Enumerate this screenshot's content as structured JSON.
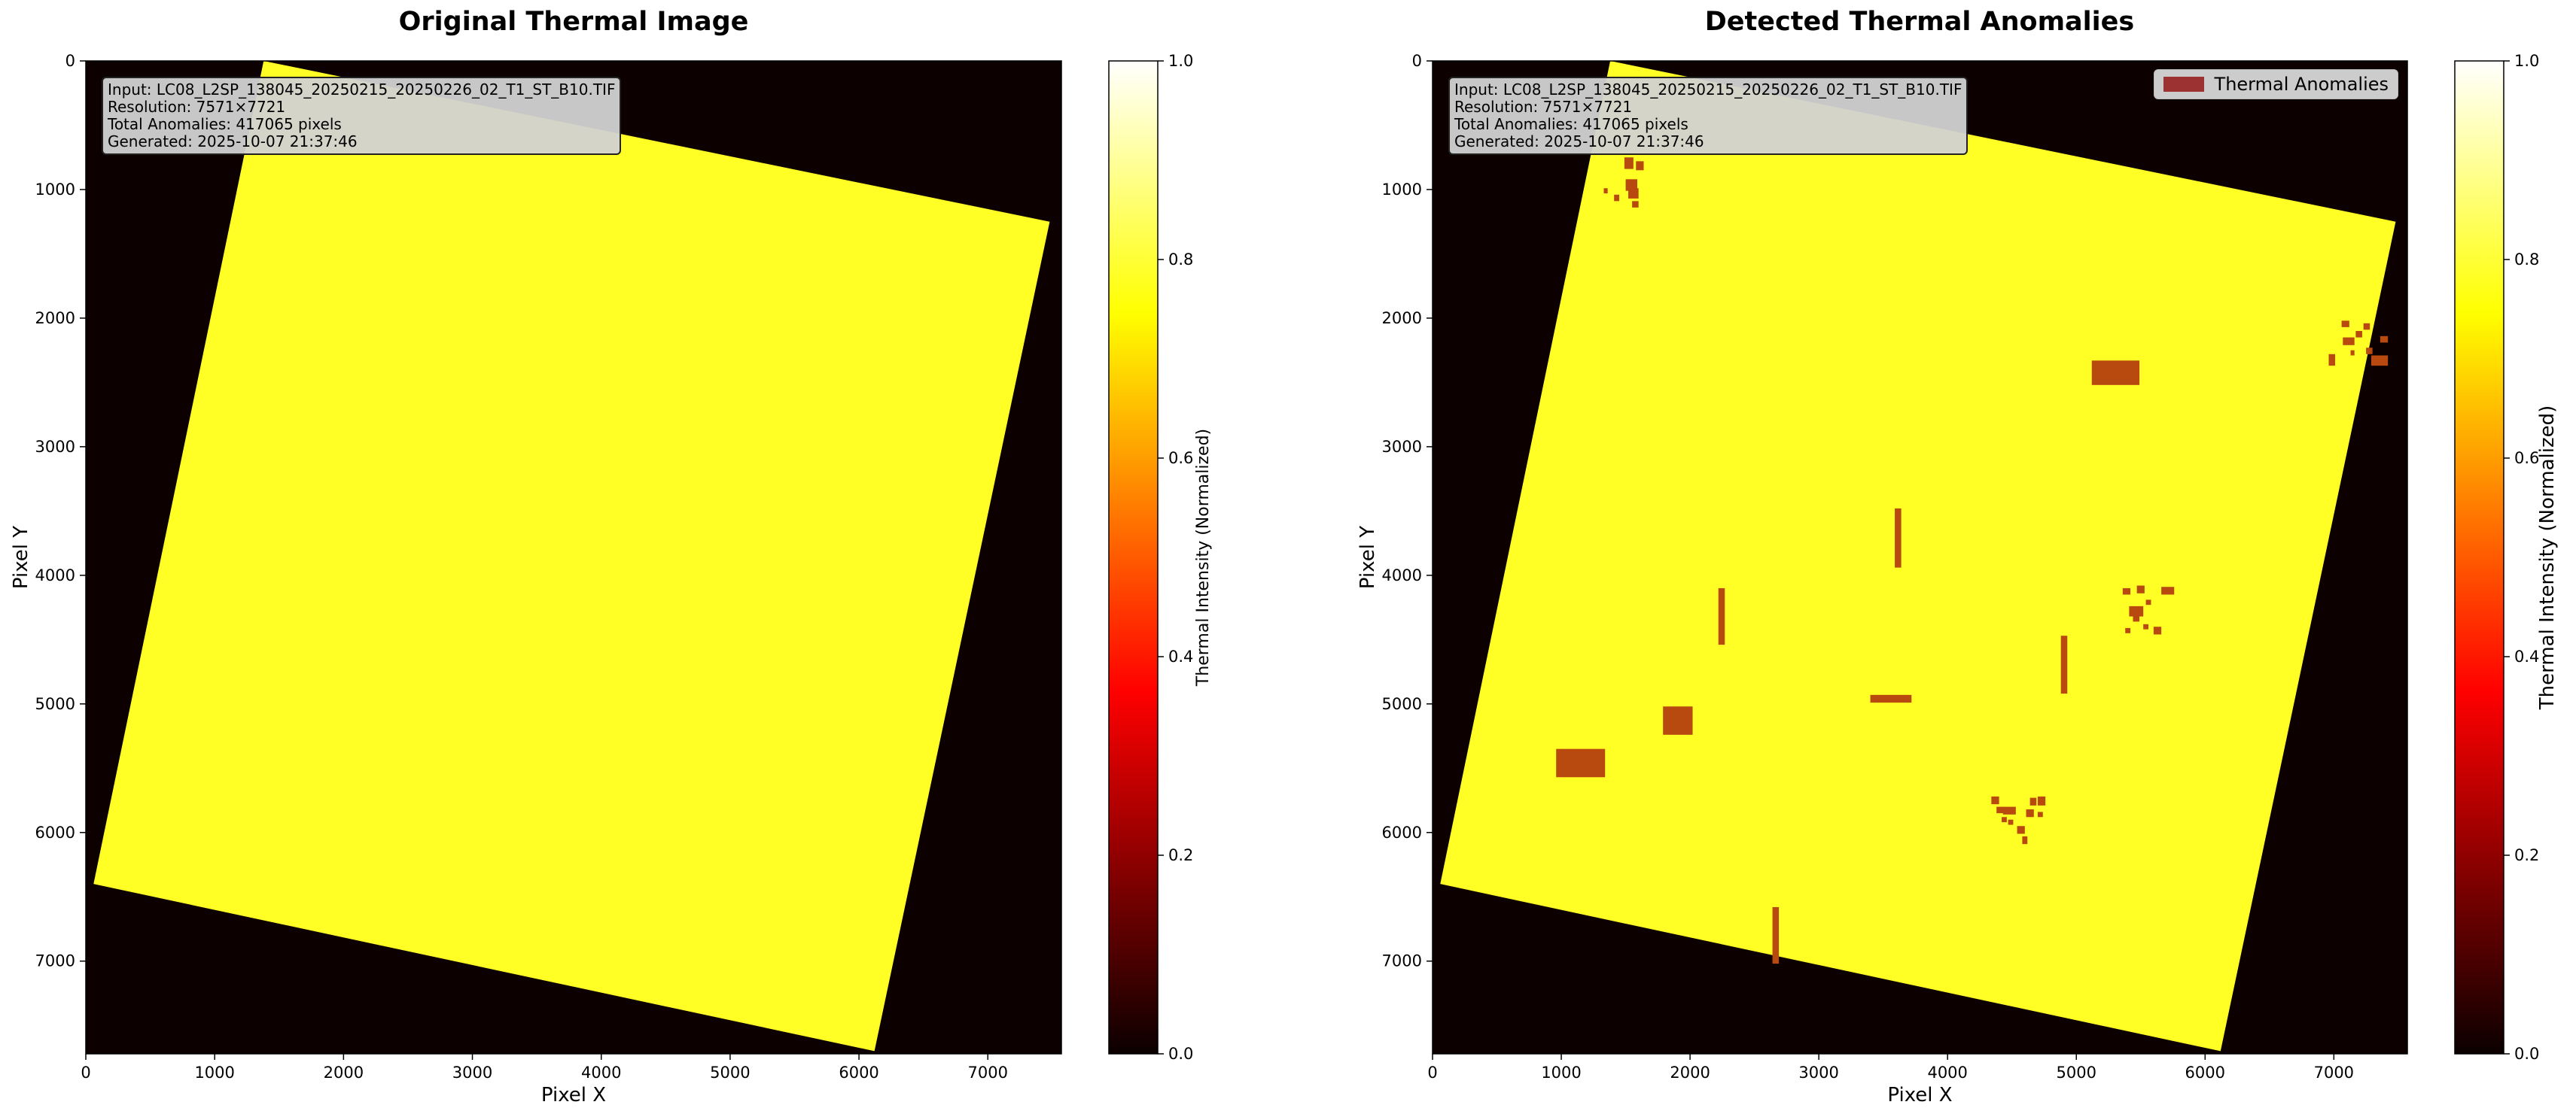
{
  "colors": {
    "background": "#0d0000",
    "scene": "#ffff26",
    "anomaly": "#b84a0f",
    "legend_swatch": "#9c3232"
  },
  "chart_data": [
    {
      "type": "heatmap",
      "title": "Original Thermal Image",
      "xlabel": "Pixel X",
      "ylabel": "Pixel Y",
      "xlim": [
        0,
        7571
      ],
      "ylim": [
        7721,
        0
      ],
      "xticks": [
        0,
        1000,
        2000,
        3000,
        4000,
        5000,
        6000,
        7000
      ],
      "yticks": [
        0,
        1000,
        2000,
        3000,
        4000,
        5000,
        6000,
        7000
      ],
      "colormap": "hot",
      "colorbar": {
        "label": "Thermal Intensity (Normalized)",
        "range": [
          0,
          1
        ],
        "ticks": [
          "0.0",
          "0.2",
          "0.4",
          "0.6",
          "0.8",
          "1.0"
        ]
      },
      "scene_corners": [
        [
          1380,
          0
        ],
        [
          7480,
          1250
        ],
        [
          6120,
          7700
        ],
        [
          60,
          6400
        ]
      ],
      "info": [
        "Input: LC08_L2SP_138045_20250215_20250226_02_T1_ST_B10.TIF",
        "Resolution: 7571×7721",
        "Total Anomalies: 417065 pixels",
        "Generated: 2025-10-07 21:37:46"
      ]
    },
    {
      "type": "heatmap",
      "title": "Detected Thermal Anomalies",
      "xlabel": "Pixel X",
      "ylabel": "Pixel Y",
      "xlim": [
        0,
        7571
      ],
      "ylim": [
        7721,
        0
      ],
      "xticks": [
        0,
        1000,
        2000,
        3000,
        4000,
        5000,
        6000,
        7000
      ],
      "yticks": [
        0,
        1000,
        2000,
        3000,
        4000,
        5000,
        6000,
        7000
      ],
      "colormap": "hot",
      "colorbar": {
        "label": "Thermal Intensity (Normalized)",
        "range": [
          0,
          1
        ],
        "ticks": [
          "0.0",
          "0.2",
          "0.4",
          "0.6",
          "0.8",
          "1.0"
        ]
      },
      "legend": {
        "label": "Thermal Anomalies",
        "placement": "top-right"
      },
      "scene_corners": [
        [
          1380,
          0
        ],
        [
          7480,
          1250
        ],
        [
          6120,
          7700
        ],
        [
          60,
          6400
        ]
      ],
      "info": [
        "Input: LC08_L2SP_138045_20250215_20250226_02_T1_ST_B10.TIF",
        "Resolution: 7571×7721",
        "Total Anomalies: 417065 pixels",
        "Generated: 2025-10-07 21:37:46"
      ],
      "anomalies": [
        {
          "x0": 960,
          "x1": 1340,
          "y0": 5350,
          "y1": 5570
        },
        {
          "x0": 1790,
          "x1": 2020,
          "y0": 5020,
          "y1": 5240
        },
        {
          "x0": 2220,
          "x1": 2270,
          "y0": 4100,
          "y1": 4540
        },
        {
          "x0": 2640,
          "x1": 2690,
          "y0": 6580,
          "y1": 7020
        },
        {
          "x0": 3400,
          "x1": 3720,
          "y0": 4930,
          "y1": 4990
        },
        {
          "x0": 3590,
          "x1": 3640,
          "y0": 3480,
          "y1": 3940
        },
        {
          "x0": 4880,
          "x1": 4930,
          "y0": 4470,
          "y1": 4920
        },
        {
          "x0": 5120,
          "x1": 5490,
          "y0": 2330,
          "y1": 2520
        },
        {
          "x0": 1490,
          "x1": 1560,
          "y0": 750,
          "y1": 840
        },
        {
          "x0": 1580,
          "x1": 1640,
          "y0": 780,
          "y1": 850
        },
        {
          "x0": 1500,
          "x1": 1590,
          "y0": 920,
          "y1": 1010
        },
        {
          "x0": 1410,
          "x1": 1450,
          "y0": 1040,
          "y1": 1090
        },
        {
          "x0": 1520,
          "x1": 1600,
          "y0": 990,
          "y1": 1070
        },
        {
          "x0": 1550,
          "x1": 1600,
          "y0": 1090,
          "y1": 1140
        },
        {
          "x0": 1330,
          "x1": 1360,
          "y0": 990,
          "y1": 1030
        },
        {
          "x0": 7060,
          "x1": 7120,
          "y0": 2020,
          "y1": 2070
        },
        {
          "x0": 7070,
          "x1": 7160,
          "y0": 2150,
          "y1": 2210
        },
        {
          "x0": 7170,
          "x1": 7220,
          "y0": 2100,
          "y1": 2150
        },
        {
          "x0": 7230,
          "x1": 7280,
          "y0": 2040,
          "y1": 2090
        },
        {
          "x0": 7250,
          "x1": 7300,
          "y0": 2230,
          "y1": 2280
        },
        {
          "x0": 7290,
          "x1": 7420,
          "y0": 2290,
          "y1": 2370
        },
        {
          "x0": 7360,
          "x1": 7420,
          "y0": 2140,
          "y1": 2190
        },
        {
          "x0": 7130,
          "x1": 7160,
          "y0": 2250,
          "y1": 2290
        },
        {
          "x0": 6960,
          "x1": 7010,
          "y0": 2280,
          "y1": 2370
        },
        {
          "x0": 5360,
          "x1": 5420,
          "y0": 4100,
          "y1": 4150
        },
        {
          "x0": 5470,
          "x1": 5530,
          "y0": 4080,
          "y1": 4140
        },
        {
          "x0": 5410,
          "x1": 5520,
          "y0": 4240,
          "y1": 4320
        },
        {
          "x0": 5540,
          "x1": 5580,
          "y0": 4190,
          "y1": 4230
        },
        {
          "x0": 5660,
          "x1": 5760,
          "y0": 4090,
          "y1": 4150
        },
        {
          "x0": 5600,
          "x1": 5660,
          "y0": 4400,
          "y1": 4460
        },
        {
          "x0": 5380,
          "x1": 5420,
          "y0": 4410,
          "y1": 4450
        },
        {
          "x0": 5520,
          "x1": 5560,
          "y0": 4380,
          "y1": 4420
        },
        {
          "x0": 5440,
          "x1": 5490,
          "y0": 4310,
          "y1": 4360
        },
        {
          "x0": 4340,
          "x1": 4400,
          "y0": 5720,
          "y1": 5780
        },
        {
          "x0": 4380,
          "x1": 4440,
          "y0": 5800,
          "y1": 5850
        },
        {
          "x0": 4430,
          "x1": 4530,
          "y0": 5800,
          "y1": 5860
        },
        {
          "x0": 4540,
          "x1": 4600,
          "y0": 5950,
          "y1": 6010
        },
        {
          "x0": 4580,
          "x1": 4620,
          "y0": 6030,
          "y1": 6090
        },
        {
          "x0": 4610,
          "x1": 4670,
          "y0": 5820,
          "y1": 5880
        },
        {
          "x0": 4640,
          "x1": 4690,
          "y0": 5730,
          "y1": 5790
        },
        {
          "x0": 4700,
          "x1": 4760,
          "y0": 5720,
          "y1": 5790
        },
        {
          "x0": 4700,
          "x1": 4740,
          "y0": 5840,
          "y1": 5880
        },
        {
          "x0": 4420,
          "x1": 4460,
          "y0": 5880,
          "y1": 5920
        },
        {
          "x0": 4470,
          "x1": 4510,
          "y0": 5900,
          "y1": 5940
        }
      ]
    }
  ]
}
